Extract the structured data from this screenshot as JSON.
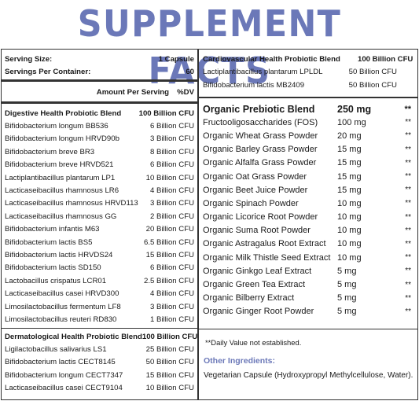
{
  "title": "SUPPLEMENT FACTS",
  "serving_size_label": "Serving Size:",
  "serving_size_value": "1 Capsule",
  "servings_label": "Servings Per Container:",
  "servings_value": "60",
  "amount_header": "Amount Per Serving",
  "dv_header": "%DV",
  "digestive": {
    "name": "Digestive Health Probiotic Blend",
    "amount": "100 Billion CFU",
    "items": [
      {
        "name": "Bifidobacterium longum BB536",
        "amount": "6 Billion CFU"
      },
      {
        "name": "Bifidobacterium longum  HRVD90b",
        "amount": "3 Billion CFU"
      },
      {
        "name": "Bifidobacterium breve BR3",
        "amount": "8 Billion CFU"
      },
      {
        "name": "Bifidobacterium breve HRVD521",
        "amount": "6 Billion CFU"
      },
      {
        "name": "Lactiplantibacillus plantarum LP1",
        "amount": "10 Billion CFU"
      },
      {
        "name": "Lacticaseibacillus rhamnosus  LR6",
        "amount": "4 Billion CFU"
      },
      {
        "name": "Lacticaseibacillus rhamnosus HRVD113",
        "amount": "3 Billion CFU"
      },
      {
        "name": "Lacticaseibacillus rhamnosus GG",
        "amount": "2 Billion CFU"
      },
      {
        "name": "Bifidobacterium infantis M63",
        "amount": "20 Billion CFU"
      },
      {
        "name": "Bifidobacterium lactis  BS5",
        "amount": "6.5 Billion CFU"
      },
      {
        "name": "Bifidobacterium lactis  HRVDS24",
        "amount": "15 Billion CFU"
      },
      {
        "name": "Bifidobacterium lactis SD150",
        "amount": "6 Billion CFU"
      },
      {
        "name": "Lactobacillus crispatus LCR01",
        "amount": "2.5 Billion CFU"
      },
      {
        "name": "Lacticaseibacillus casei HRVD300",
        "amount": "4 Billion CFU"
      },
      {
        "name": "Limosilactobacillus fermentum LF8",
        "amount": "3 Billion CFU"
      },
      {
        "name": "Limosilactobacillus reuteri RD830",
        "amount": "1 Billion CFU"
      }
    ]
  },
  "dermatological": {
    "name": "Dermatological Health Probiotic Blend",
    "amount": "100 Billion CFU",
    "items": [
      {
        "name": "Ligilactobacillus salivarius LS1",
        "amount": "25 Billion CFU"
      },
      {
        "name": "Bifidobacterium lactis CECT8145",
        "amount": "50 Billion CFU"
      },
      {
        "name": "Bifidobacterium longum CECT7347",
        "amount": "15 Billion CFU"
      },
      {
        "name": "Lacticaseibacillus casei CECT9104",
        "amount": "10 Billion CFU"
      }
    ]
  },
  "cardio": {
    "name": "Cardiovascular Health Probiotic Blend",
    "amount": "100 Billion CFU",
    "items": [
      {
        "name": "Lactiplantibacillus plantarum LPLDL",
        "amount": "50 Billion CFU"
      },
      {
        "name": "Bifidobacterium lactis MB2409",
        "amount": "50 Billion CFU"
      }
    ]
  },
  "prebiotic": {
    "name": "Organic Prebiotic Blend",
    "amount": "250 mg",
    "dv": "**",
    "items": [
      {
        "name": "Fructooligosaccharides (FOS)",
        "amount": "100 mg",
        "dv": "**"
      },
      {
        "name": "Organic Wheat Grass Powder",
        "amount": "20 mg",
        "dv": "**"
      },
      {
        "name": "Organic Barley Grass Powder",
        "amount": "15 mg",
        "dv": "**"
      },
      {
        "name": "Organic Alfalfa Grass Powder",
        "amount": "15 mg",
        "dv": "**"
      },
      {
        "name": "Organic Oat Grass Powder",
        "amount": "15 mg",
        "dv": "**"
      },
      {
        "name": "Organic Beet Juice Powder",
        "amount": "15 mg",
        "dv": "**"
      },
      {
        "name": "Organic Spinach Powder",
        "amount": "10 mg",
        "dv": "**"
      },
      {
        "name": "Organic Licorice Root Powder",
        "amount": "10 mg",
        "dv": "**"
      },
      {
        "name": "Organic Suma Root Powder",
        "amount": "10 mg",
        "dv": "**"
      },
      {
        "name": "Organic Astragalus Root Extract",
        "amount": "10 mg",
        "dv": "**"
      },
      {
        "name": "Organic Milk Thistle Seed Extract",
        "amount": "10 mg",
        "dv": "**"
      },
      {
        "name": "Organic Ginkgo Leaf Extract",
        "amount": "5 mg",
        "dv": "**"
      },
      {
        "name": "Organic Green Tea Extract",
        "amount": "5 mg",
        "dv": "**"
      },
      {
        "name": "Organic Bilberry Extract",
        "amount": "5 mg",
        "dv": "**"
      },
      {
        "name": "Organic Ginger Root Powder",
        "amount": "5 mg",
        "dv": "**"
      }
    ]
  },
  "footnote": "**Daily Value not established.",
  "other_ingredients_heading": "Other Ingredients:",
  "other_ingredients_text": "Vegetarian Capsule (Hydroxypropyl Methylcellulose, Water).",
  "colors": {
    "accent": "#6b78b8",
    "rule": "#333333"
  }
}
